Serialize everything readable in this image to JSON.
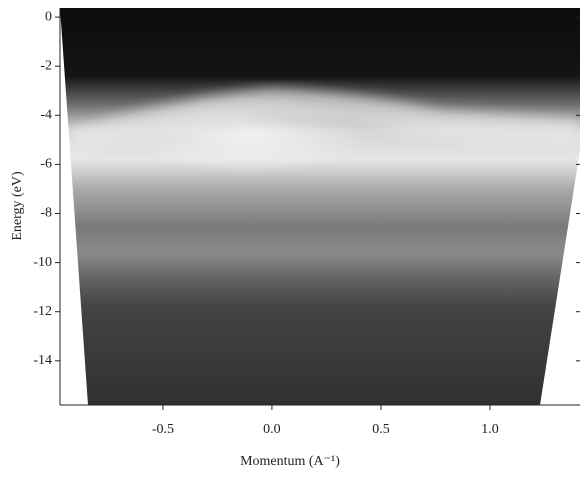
{
  "chart_data": {
    "type": "image",
    "xlabel": "Momentum (A⁻¹)",
    "ylabel": "Energy (eV)",
    "xlim": [
      -0.972,
      1.413
    ],
    "ylim": [
      -15.8,
      0.37
    ],
    "xticks": [
      -0.5,
      {
        "value": 0,
        "label": "0.0"
      },
      0.5,
      {
        "value": 1,
        "label": "1.0"
      }
    ],
    "yticks": [
      0,
      -2,
      -4,
      -6,
      -8,
      -10,
      -12,
      -14
    ]
  }
}
